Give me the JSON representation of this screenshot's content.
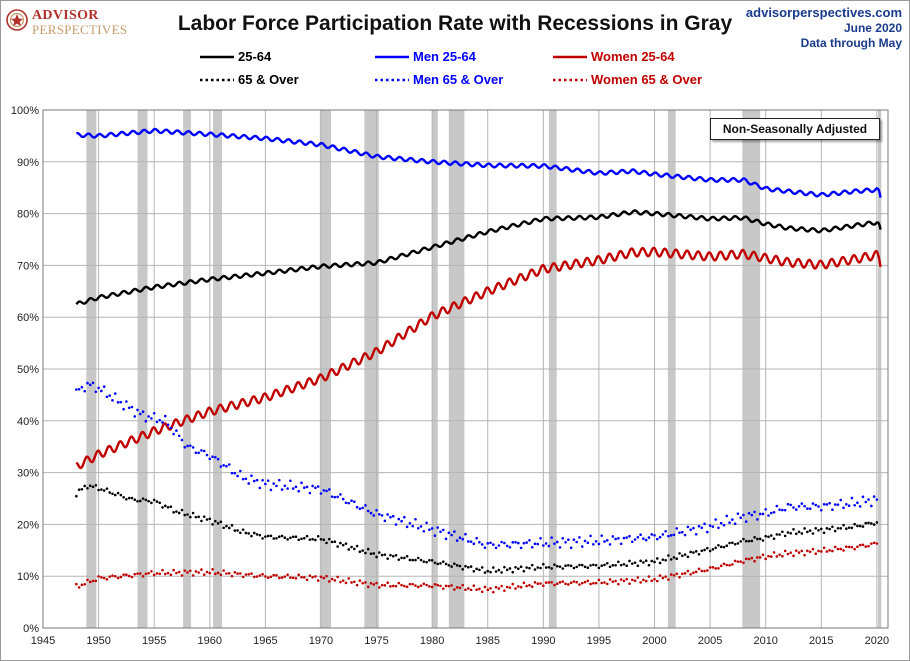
{
  "header": {
    "logo": {
      "line1": "ADVISOR",
      "line2": "PERSPECTIVES"
    },
    "title": "Labor Force Participation Rate with Recessions in Gray",
    "site": "advisorperspectives.com",
    "date": "June 2020",
    "data_through": "Data through May"
  },
  "annotation": "Non-Seasonally Adjusted",
  "colors": {
    "black": "#000000",
    "blue": "#0000ff",
    "red": "#c00000",
    "recession": "#c8c8c8",
    "grid": "#b5b5b5"
  },
  "chart_data": {
    "type": "line",
    "title": "Labor Force Participation Rate with Recessions in Gray",
    "xlabel": "",
    "ylabel": "",
    "xlim": [
      1945,
      2021
    ],
    "ylim": [
      0,
      100
    ],
    "x_ticks": [
      1945,
      1950,
      1955,
      1960,
      1965,
      1970,
      1975,
      1980,
      1985,
      1990,
      1995,
      2000,
      2005,
      2010,
      2015,
      2020
    ],
    "y_ticks": [
      0,
      10,
      20,
      30,
      40,
      50,
      60,
      70,
      80,
      90,
      100
    ],
    "y_tick_suffix": "%",
    "grid": true,
    "legend_position": "top",
    "recessions": [
      [
        1948.9,
        1949.8
      ],
      [
        1953.5,
        1954.4
      ],
      [
        1957.6,
        1958.3
      ],
      [
        1960.3,
        1961.1
      ],
      [
        1969.9,
        1970.9
      ],
      [
        1973.9,
        1975.2
      ],
      [
        1980.0,
        1980.5
      ],
      [
        1981.5,
        1982.9
      ],
      [
        1990.5,
        1991.2
      ],
      [
        2001.2,
        2001.9
      ],
      [
        2007.9,
        2009.5
      ],
      [
        2020.1,
        2020.4
      ]
    ],
    "series": [
      {
        "name": "25-64",
        "color": "#000000",
        "style": "solid",
        "points": [
          [
            1948,
            62.5
          ],
          [
            1950,
            63.8
          ],
          [
            1955,
            65.8
          ],
          [
            1960,
            67.3
          ],
          [
            1965,
            68.5
          ],
          [
            1970,
            69.8
          ],
          [
            1975,
            70.5
          ],
          [
            1980,
            73.5
          ],
          [
            1985,
            76.5
          ],
          [
            1990,
            79.0
          ],
          [
            1995,
            79.3
          ],
          [
            1998,
            80.3
          ],
          [
            2000,
            80.0
          ],
          [
            2005,
            79.0
          ],
          [
            2008,
            79.2
          ],
          [
            2010,
            78.0
          ],
          [
            2012,
            77.2
          ],
          [
            2015,
            76.7
          ],
          [
            2018,
            77.7
          ],
          [
            2020.0,
            78.3
          ],
          [
            2020.2,
            77.8
          ],
          [
            2020.4,
            76.0
          ]
        ]
      },
      {
        "name": "Men 25-64",
        "color": "#0000ff",
        "style": "solid",
        "points": [
          [
            1948,
            95.2
          ],
          [
            1950,
            95.0
          ],
          [
            1955,
            96.0
          ],
          [
            1960,
            95.3
          ],
          [
            1965,
            94.5
          ],
          [
            1970,
            93.3
          ],
          [
            1975,
            91.0
          ],
          [
            1980,
            90.0
          ],
          [
            1985,
            89.3
          ],
          [
            1990,
            89.2
          ],
          [
            1995,
            87.8
          ],
          [
            1998,
            88.2
          ],
          [
            2000,
            87.6
          ],
          [
            2005,
            86.5
          ],
          [
            2008,
            86.5
          ],
          [
            2010,
            84.8
          ],
          [
            2012,
            84.3
          ],
          [
            2015,
            83.6
          ],
          [
            2018,
            84.3
          ],
          [
            2020.0,
            84.6
          ],
          [
            2020.2,
            84.2
          ],
          [
            2020.4,
            82.5
          ]
        ]
      },
      {
        "name": "Women 25-64",
        "color": "#c00000",
        "style": "solid",
        "points": [
          [
            1948,
            31.2
          ],
          [
            1950,
            33.5
          ],
          [
            1955,
            38.0
          ],
          [
            1960,
            41.8
          ],
          [
            1965,
            44.5
          ],
          [
            1970,
            48.2
          ],
          [
            1975,
            53.3
          ],
          [
            1980,
            60.2
          ],
          [
            1985,
            65.0
          ],
          [
            1990,
            69.3
          ],
          [
            1995,
            71.0
          ],
          [
            1998,
            72.5
          ],
          [
            2000,
            72.6
          ],
          [
            2005,
            71.7
          ],
          [
            2008,
            72.2
          ],
          [
            2010,
            71.4
          ],
          [
            2012,
            70.6
          ],
          [
            2015,
            70.1
          ],
          [
            2018,
            71.2
          ],
          [
            2020.0,
            72.0
          ],
          [
            2020.2,
            71.5
          ],
          [
            2020.4,
            69.8
          ]
        ]
      },
      {
        "name": "65 & Over",
        "color": "#000000",
        "style": "dotted",
        "points": [
          [
            1948,
            26.0
          ],
          [
            1949,
            27.5
          ],
          [
            1950,
            27.0
          ],
          [
            1953,
            24.8
          ],
          [
            1955,
            24.5
          ],
          [
            1957,
            22.5
          ],
          [
            1960,
            20.8
          ],
          [
            1963,
            18.5
          ],
          [
            1965,
            17.6
          ],
          [
            1970,
            17.2
          ],
          [
            1975,
            14.2
          ],
          [
            1980,
            12.8
          ],
          [
            1985,
            11.0
          ],
          [
            1990,
            11.8
          ],
          [
            1995,
            12.0
          ],
          [
            2000,
            12.8
          ],
          [
            2005,
            15.2
          ],
          [
            2008,
            16.8
          ],
          [
            2010,
            17.4
          ],
          [
            2012,
            18.4
          ],
          [
            2015,
            18.9
          ],
          [
            2018,
            19.6
          ],
          [
            2020,
            20.4
          ]
        ]
      },
      {
        "name": "Men 65 & Over",
        "color": "#0000ff",
        "style": "dotted",
        "points": [
          [
            1948,
            45.5
          ],
          [
            1949,
            47.0
          ],
          [
            1950,
            46.3
          ],
          [
            1952,
            43.5
          ],
          [
            1954,
            41.0
          ],
          [
            1956,
            40.0
          ],
          [
            1958,
            35.0
          ],
          [
            1960,
            33.3
          ],
          [
            1963,
            29.0
          ],
          [
            1965,
            27.8
          ],
          [
            1970,
            26.8
          ],
          [
            1975,
            22.0
          ],
          [
            1980,
            19.0
          ],
          [
            1985,
            16.0
          ],
          [
            1990,
            16.4
          ],
          [
            1995,
            16.8
          ],
          [
            2000,
            17.6
          ],
          [
            2005,
            19.6
          ],
          [
            2008,
            21.5
          ],
          [
            2010,
            22.1
          ],
          [
            2012,
            23.4
          ],
          [
            2015,
            23.5
          ],
          [
            2018,
            24.1
          ],
          [
            2020,
            24.8
          ]
        ]
      },
      {
        "name": "Women 65 & Over",
        "color": "#c00000",
        "style": "dotted",
        "points": [
          [
            1948,
            8.0
          ],
          [
            1950,
            9.6
          ],
          [
            1955,
            10.6
          ],
          [
            1960,
            10.8
          ],
          [
            1965,
            10.0
          ],
          [
            1970,
            9.7
          ],
          [
            1975,
            8.3
          ],
          [
            1980,
            8.2
          ],
          [
            1985,
            7.4
          ],
          [
            1990,
            8.6
          ],
          [
            1995,
            8.8
          ],
          [
            2000,
            9.4
          ],
          [
            2005,
            11.4
          ],
          [
            2008,
            13.0
          ],
          [
            2010,
            13.8
          ],
          [
            2012,
            14.4
          ],
          [
            2015,
            14.9
          ],
          [
            2018,
            15.6
          ],
          [
            2020,
            16.3
          ]
        ]
      }
    ]
  }
}
